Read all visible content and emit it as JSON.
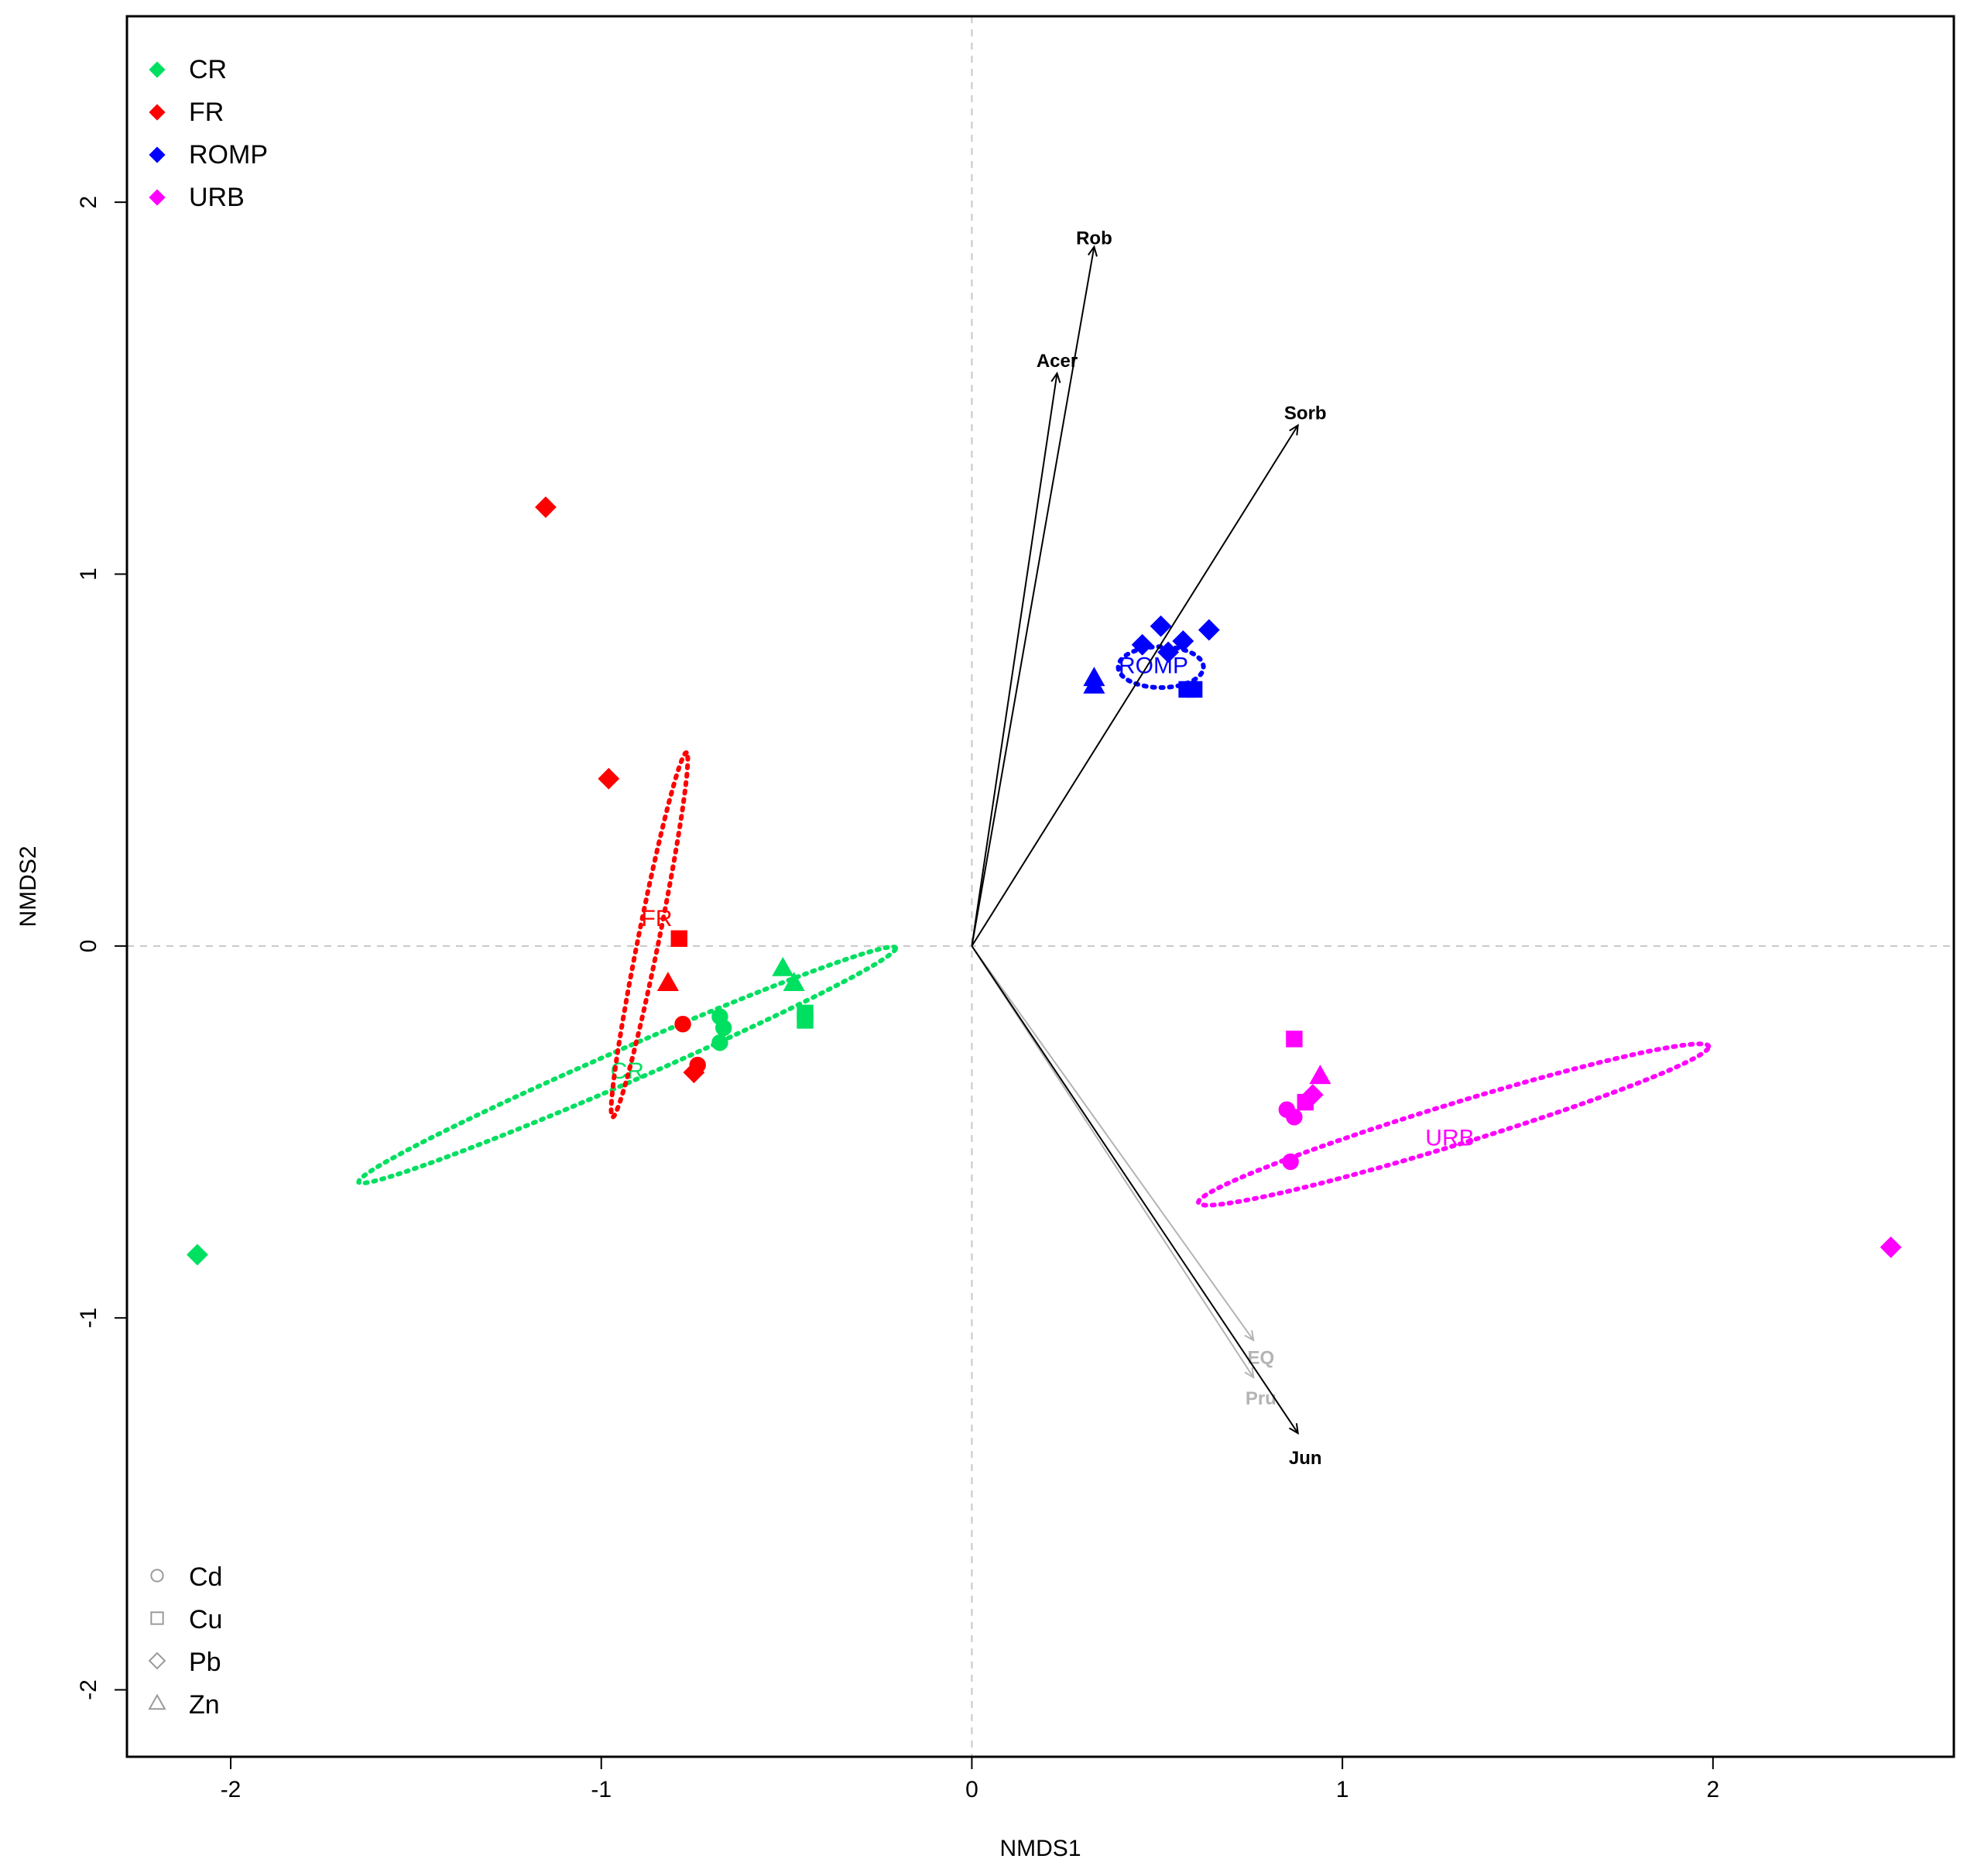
{
  "chart_data": {
    "type": "scatter",
    "xlabel": "NMDS1",
    "ylabel": "NMDS2",
    "xlim": [
      -2.28,
      2.65
    ],
    "ylim": [
      -2.18,
      2.5
    ],
    "xticks": [
      -2,
      -1,
      0,
      1,
      2
    ],
    "yticks": [
      -2,
      -1,
      0,
      1,
      2
    ],
    "reference_lines": {
      "x": 0,
      "y": 0,
      "style": "dashed",
      "color": "#c8c8c8"
    },
    "groups": [
      {
        "name": "CR",
        "color": "#00e060"
      },
      {
        "name": "FR",
        "color": "#ff0000"
      },
      {
        "name": "ROMP",
        "color": "#0000ff"
      },
      {
        "name": "URB",
        "color": "#ff00ff"
      }
    ],
    "metals": [
      {
        "name": "Cd",
        "shape": "circle"
      },
      {
        "name": "Cu",
        "shape": "square"
      },
      {
        "name": "Pb",
        "shape": "diamond"
      },
      {
        "name": "Zn",
        "shape": "triangle"
      }
    ],
    "legend_groups_position": "top-left",
    "legend_metals_position": "bottom-left",
    "points": [
      {
        "group": "CR",
        "metal": "Cd",
        "x": -0.68,
        "y": -0.19
      },
      {
        "group": "CR",
        "metal": "Cd",
        "x": -0.67,
        "y": -0.22
      },
      {
        "group": "CR",
        "metal": "Cd",
        "x": -0.68,
        "y": -0.26
      },
      {
        "group": "CR",
        "metal": "Cu",
        "x": -0.45,
        "y": -0.18
      },
      {
        "group": "CR",
        "metal": "Cu",
        "x": -0.45,
        "y": -0.2
      },
      {
        "group": "CR",
        "metal": "Pb",
        "x": -2.09,
        "y": -0.83
      },
      {
        "group": "CR",
        "metal": "Zn",
        "x": -0.51,
        "y": -0.06
      },
      {
        "group": "CR",
        "metal": "Zn",
        "x": -0.48,
        "y": -0.1
      },
      {
        "group": "FR",
        "metal": "Cd",
        "x": -0.78,
        "y": -0.21
      },
      {
        "group": "FR",
        "metal": "Cd",
        "x": -0.74,
        "y": -0.32
      },
      {
        "group": "FR",
        "metal": "Cu",
        "x": -0.79,
        "y": 0.02
      },
      {
        "group": "FR",
        "metal": "Pb",
        "x": -1.15,
        "y": 1.18
      },
      {
        "group": "FR",
        "metal": "Pb",
        "x": -0.98,
        "y": 0.45
      },
      {
        "group": "FR",
        "metal": "Pb",
        "x": -0.75,
        "y": -0.34
      },
      {
        "group": "FR",
        "metal": "Zn",
        "x": -0.82,
        "y": -0.1
      },
      {
        "group": "ROMP",
        "metal": "Cu",
        "x": 0.58,
        "y": 0.69
      },
      {
        "group": "ROMP",
        "metal": "Cu",
        "x": 0.6,
        "y": 0.69
      },
      {
        "group": "ROMP",
        "metal": "Pb",
        "x": 0.46,
        "y": 0.81
      },
      {
        "group": "ROMP",
        "metal": "Pb",
        "x": 0.51,
        "y": 0.86
      },
      {
        "group": "ROMP",
        "metal": "Pb",
        "x": 0.53,
        "y": 0.79
      },
      {
        "group": "ROMP",
        "metal": "Pb",
        "x": 0.57,
        "y": 0.82
      },
      {
        "group": "ROMP",
        "metal": "Pb",
        "x": 0.64,
        "y": 0.85
      },
      {
        "group": "ROMP",
        "metal": "Zn",
        "x": 0.33,
        "y": 0.72
      },
      {
        "group": "ROMP",
        "metal": "Zn",
        "x": 0.33,
        "y": 0.7
      },
      {
        "group": "URB",
        "metal": "Cd",
        "x": 0.85,
        "y": -0.44
      },
      {
        "group": "URB",
        "metal": "Cd",
        "x": 0.87,
        "y": -0.46
      },
      {
        "group": "URB",
        "metal": "Cd",
        "x": 0.86,
        "y": -0.58
      },
      {
        "group": "URB",
        "metal": "Cu",
        "x": 0.87,
        "y": -0.25
      },
      {
        "group": "URB",
        "metal": "Cu",
        "x": 0.9,
        "y": -0.42
      },
      {
        "group": "URB",
        "metal": "Pb",
        "x": 0.92,
        "y": -0.4
      },
      {
        "group": "URB",
        "metal": "Pb",
        "x": 2.48,
        "y": -0.81
      },
      {
        "group": "URB",
        "metal": "Zn",
        "x": 0.94,
        "y": -0.35
      }
    ],
    "ellipses": [
      {
        "group": "CR",
        "label": "CR",
        "cx": -0.93,
        "cy": -0.32,
        "rx": 0.79,
        "ry": 0.045,
        "angle_deg": 23.5,
        "label_x": -0.93,
        "label_y": -0.34
      },
      {
        "group": "FR",
        "label": "FR",
        "cx": -0.87,
        "cy": 0.03,
        "rx": 0.5,
        "ry": 0.028,
        "angle_deg": 78.5,
        "label_x": -0.85,
        "label_y": 0.07
      },
      {
        "group": "ROMP",
        "label": "ROMP",
        "cx": 0.51,
        "cy": 0.75,
        "rx": 0.115,
        "ry": 0.055,
        "angle_deg": 0,
        "label_x": 0.49,
        "label_y": 0.75
      },
      {
        "group": "URB",
        "label": "URB",
        "cx": 1.3,
        "cy": -0.48,
        "rx": 0.72,
        "ry": 0.055,
        "angle_deg": 17,
        "label_x": 1.29,
        "label_y": -0.52
      }
    ],
    "vectors": [
      {
        "label": "Rob",
        "x": 0.33,
        "y": 1.88,
        "color": "#000000",
        "label_x": 0.33,
        "label_y": 1.9
      },
      {
        "label": "Acer",
        "x": 0.23,
        "y": 1.54,
        "color": "#000000",
        "label_x": 0.23,
        "label_y": 1.57
      },
      {
        "label": "Sorb",
        "x": 0.88,
        "y": 1.4,
        "color": "#000000",
        "label_x": 0.9,
        "label_y": 1.43
      },
      {
        "label": "EQ",
        "x": 0.76,
        "y": -1.06,
        "color": "#b4b4b4",
        "label_x": 0.78,
        "label_y": -1.11
      },
      {
        "label": "Pru",
        "x": 0.76,
        "y": -1.16,
        "color": "#b4b4b4",
        "label_x": 0.78,
        "label_y": -1.22
      },
      {
        "label": "Jun",
        "x": 0.88,
        "y": -1.31,
        "color": "#000000",
        "label_x": 0.9,
        "label_y": -1.38
      }
    ]
  }
}
